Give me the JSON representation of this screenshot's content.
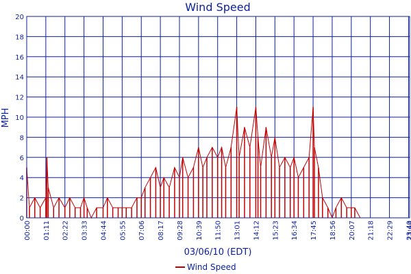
{
  "colors": {
    "axis_text": "#0b1f9b",
    "grid": "#0b1f9b",
    "series": "#c00000",
    "background": "#ffffff"
  },
  "chart_data": {
    "type": "line",
    "title": "Wind Speed",
    "xlabel": "03/06/10 (EDT)",
    "ylabel": "MPH",
    "ylim": [
      0,
      20
    ],
    "yticks": [
      0,
      2,
      4,
      6,
      8,
      10,
      12,
      14,
      16,
      18,
      20
    ],
    "xticks": [
      "00:00",
      "01:11",
      "02:22",
      "03:33",
      "04:44",
      "05:55",
      "07:06",
      "08:17",
      "09:28",
      "10:39",
      "11:50",
      "13:01",
      "14:12",
      "15:23",
      "16:34",
      "17:45",
      "18:56",
      "20:07",
      "21:18",
      "22:29",
      "23:40",
      "23:44"
    ],
    "grid": true,
    "legend": {
      "position": "bottom-center"
    },
    "series": [
      {
        "name": "Wind Speed",
        "x": [
          "00:00",
          "00:10",
          "00:30",
          "00:50",
          "01:11",
          "01:15",
          "01:20",
          "01:40",
          "02:00",
          "02:22",
          "02:40",
          "03:00",
          "03:20",
          "03:33",
          "03:45",
          "04:00",
          "04:20",
          "04:44",
          "05:00",
          "05:20",
          "05:40",
          "05:55",
          "06:10",
          "06:30",
          "06:50",
          "07:06",
          "07:20",
          "07:40",
          "08:00",
          "08:17",
          "08:30",
          "08:50",
          "09:10",
          "09:28",
          "09:40",
          "10:00",
          "10:20",
          "10:39",
          "10:55",
          "11:10",
          "11:30",
          "11:50",
          "12:05",
          "12:20",
          "12:40",
          "13:01",
          "13:10",
          "13:30",
          "13:50",
          "14:12",
          "14:20",
          "14:30",
          "14:50",
          "15:10",
          "15:23",
          "15:40",
          "16:00",
          "16:20",
          "16:34",
          "16:50",
          "17:10",
          "17:30",
          "17:45",
          "17:50",
          "18:05",
          "18:20",
          "18:40",
          "18:56",
          "19:10",
          "19:30",
          "19:50",
          "20:07",
          "20:20",
          "20:40",
          "21:00",
          "21:18",
          "21:40",
          "22:00",
          "22:29",
          "23:00",
          "23:40",
          "23:44"
        ],
        "values": [
          5,
          1,
          2,
          1,
          2,
          6,
          3,
          1,
          2,
          1,
          2,
          1,
          1,
          2,
          1,
          0,
          1,
          1,
          2,
          1,
          1,
          1,
          1,
          1,
          2,
          2,
          3,
          4,
          5,
          3,
          4,
          3,
          5,
          4,
          6,
          4,
          5,
          7,
          5,
          6,
          7,
          6,
          7,
          5,
          7,
          11,
          6,
          9,
          7,
          11,
          8,
          5,
          9,
          6,
          8,
          5,
          6,
          5,
          6,
          4,
          5,
          6,
          11,
          7,
          5,
          2,
          1,
          0,
          1,
          2,
          1,
          1,
          1,
          0,
          0,
          0,
          0,
          0,
          0,
          0,
          0,
          0
        ]
      }
    ]
  }
}
